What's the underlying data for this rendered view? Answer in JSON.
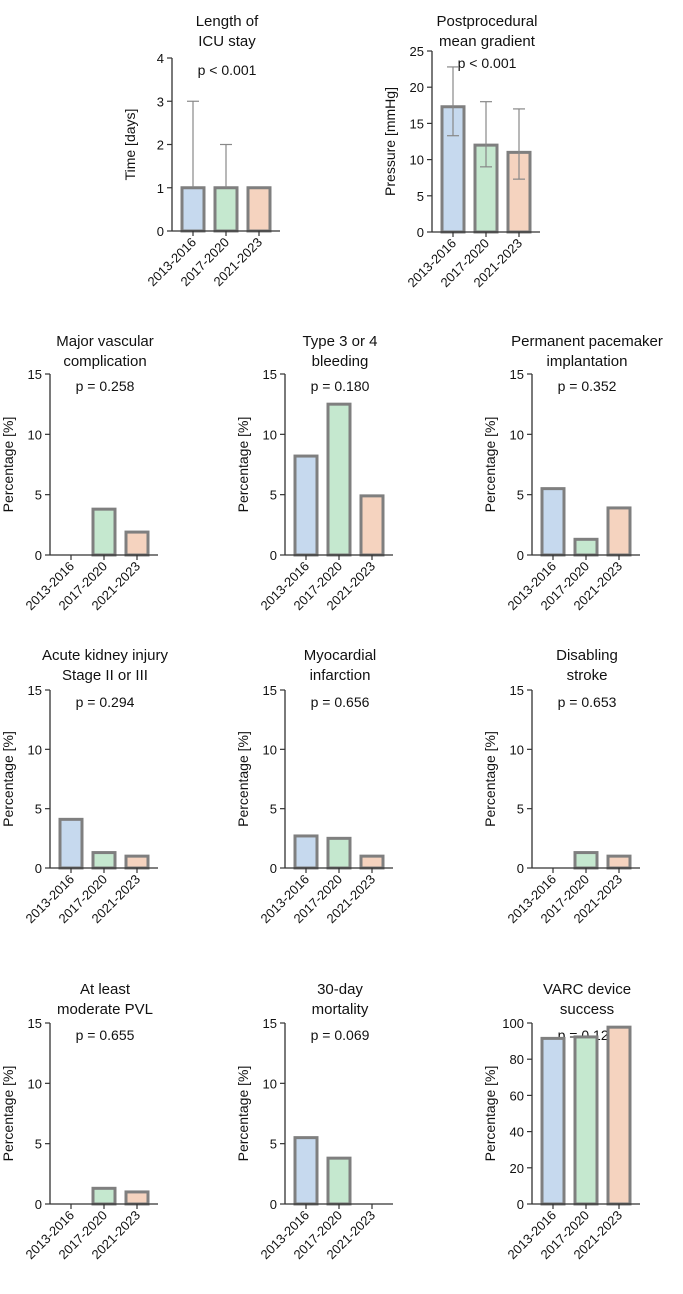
{
  "colors": {
    "c2013": "#c6d9ee",
    "c2017": "#c5e8cf",
    "c2021": "#f5d3bf",
    "edge": "#7f7f7f",
    "axis": "#333333"
  },
  "chart_data": [
    {
      "type": "bar",
      "title": [
        "Length of",
        "ICU stay"
      ],
      "ylabel": "Time [days]",
      "p": "p < 0.001",
      "categories": [
        "2013-2016",
        "2017-2020",
        "2021-2023"
      ],
      "values": [
        1,
        1,
        1
      ],
      "error_low": [
        1,
        1,
        1
      ],
      "error_high": [
        3,
        2,
        1
      ],
      "ylim": [
        0,
        4
      ],
      "yticks": [
        0,
        1,
        2,
        3,
        4
      ]
    },
    {
      "type": "bar",
      "title": [
        "Postprocedural",
        "mean gradient"
      ],
      "ylabel": "Pressure [mmHg]",
      "p": "p < 0.001",
      "categories": [
        "2013-2016",
        "2017-2020",
        "2021-2023"
      ],
      "values": [
        17.3,
        12,
        11
      ],
      "error_low": [
        13.3,
        9,
        7.3
      ],
      "error_high": [
        22.8,
        18,
        17
      ],
      "ylim": [
        0,
        25
      ],
      "yticks": [
        0,
        5,
        10,
        15,
        20,
        25
      ]
    },
    {
      "type": "bar",
      "title": [
        "Major vascular",
        "complication"
      ],
      "ylabel": "Percentage [%]",
      "p": "p = 0.258",
      "categories": [
        "2013-2016",
        "2017-2020",
        "2021-2023"
      ],
      "values": [
        0,
        3.8,
        1.9
      ],
      "ylim": [
        0,
        15
      ],
      "yticks": [
        0,
        5,
        10,
        15
      ]
    },
    {
      "type": "bar",
      "title": [
        "Type 3 or 4",
        "bleeding"
      ],
      "ylabel": "Percentage [%]",
      "p": "p = 0.180",
      "categories": [
        "2013-2016",
        "2017-2020",
        "2021-2023"
      ],
      "values": [
        8.2,
        12.5,
        4.9
      ],
      "ylim": [
        0,
        15
      ],
      "yticks": [
        0,
        5,
        10,
        15
      ]
    },
    {
      "type": "bar",
      "title": [
        "Permanent pacemaker",
        "implantation"
      ],
      "ylabel": "Percentage [%]",
      "p": "p = 0.352",
      "categories": [
        "2013-2016",
        "2017-2020",
        "2021-2023"
      ],
      "values": [
        5.5,
        1.3,
        3.9
      ],
      "ylim": [
        0,
        15
      ],
      "yticks": [
        0,
        5,
        10,
        15
      ]
    },
    {
      "type": "bar",
      "title": [
        "Acute kidney injury",
        "Stage II or III"
      ],
      "ylabel": "Percentage [%]",
      "p": "p = 0.294",
      "categories": [
        "2013-2016",
        "2017-2020",
        "2021-2023"
      ],
      "values": [
        4.1,
        1.3,
        1.0
      ],
      "ylim": [
        0,
        15
      ],
      "yticks": [
        0,
        5,
        10,
        15
      ]
    },
    {
      "type": "bar",
      "title": [
        "Myocardial",
        "infarction"
      ],
      "ylabel": "Percentage [%]",
      "p": "p = 0.656",
      "categories": [
        "2013-2016",
        "2017-2020",
        "2021-2023"
      ],
      "values": [
        2.7,
        2.5,
        1.0
      ],
      "ylim": [
        0,
        15
      ],
      "yticks": [
        0,
        5,
        10,
        15
      ]
    },
    {
      "type": "bar",
      "title": [
        "Disabling",
        "stroke"
      ],
      "ylabel": "Percentage [%]",
      "p": "p = 0.653",
      "categories": [
        "2013-2016",
        "2017-2020",
        "2021-2023"
      ],
      "values": [
        0,
        1.3,
        1.0
      ],
      "ylim": [
        0,
        15
      ],
      "yticks": [
        0,
        5,
        10,
        15
      ]
    },
    {
      "type": "bar",
      "title": [
        "At least",
        "moderate PVL"
      ],
      "ylabel": "Percentage [%]",
      "p": "p = 0.655",
      "categories": [
        "2013-2016",
        "2017-2020",
        "2021-2023"
      ],
      "values": [
        0,
        1.3,
        1.0
      ],
      "ylim": [
        0,
        15
      ],
      "yticks": [
        0,
        5,
        10,
        15
      ]
    },
    {
      "type": "bar",
      "title": [
        "30-day",
        "mortality"
      ],
      "ylabel": "Percentage [%]",
      "p": "p = 0.069",
      "categories": [
        "2013-2016",
        "2017-2020",
        "2021-2023"
      ],
      "values": [
        5.5,
        3.8,
        0
      ],
      "ylim": [
        0,
        15
      ],
      "yticks": [
        0,
        5,
        10,
        15
      ]
    },
    {
      "type": "bar",
      "title": [
        "VARC device",
        "success"
      ],
      "ylabel": "Percentage [%]",
      "p": "p = 0.123",
      "categories": [
        "2013-2016",
        "2017-2020",
        "2021-2023"
      ],
      "values": [
        91.5,
        92.3,
        97.7
      ],
      "ylim": [
        0,
        100
      ],
      "yticks": [
        0,
        20,
        40,
        60,
        80,
        100
      ]
    }
  ]
}
